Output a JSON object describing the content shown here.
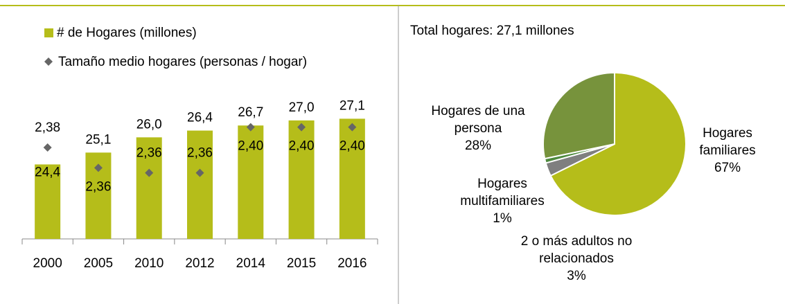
{
  "chart_data": [
    {
      "type": "bar",
      "categories": [
        "2000",
        "2005",
        "2010",
        "2012",
        "2014",
        "2015",
        "2016"
      ],
      "series": [
        {
          "name": "# de Hogares (millones)",
          "color": "#b5bd1a",
          "values": [
            24.4,
            25.1,
            26.0,
            26.4,
            26.7,
            27.0,
            27.1
          ],
          "value_labels": [
            "24,4",
            "25,1",
            "26,0",
            "26,4",
            "26,7",
            "27,0",
            "27,1"
          ]
        },
        {
          "name": "Tamaño medio hogares (personas / hogar)",
          "type": "scatter",
          "axis": "y2",
          "color": "#666666",
          "values": [
            2.38,
            2.36,
            2.355,
            2.355,
            2.4,
            2.4,
            2.4
          ],
          "value_labels": [
            "2,38",
            "2,36",
            "2,36",
            "2,36",
            "2,40",
            "2,40",
            "2,40"
          ]
        }
      ],
      "ylim": [
        20,
        29
      ],
      "y2lim": [
        2.29,
        2.44
      ]
    },
    {
      "type": "pie",
      "title": "Total hogares: 27,1 millones",
      "categories": [
        "Hogares familiares",
        "2 o más adultos no relacionados",
        "Hogares multifamiliares",
        "Hogares de una persona"
      ],
      "values": [
        67,
        3,
        1,
        28
      ],
      "value_labels": [
        "67%",
        "3%",
        "1%",
        "28%"
      ],
      "colors": [
        "#b5bd1a",
        "#7f7f7f",
        "#4e8a3e",
        "#77933c"
      ]
    }
  ]
}
